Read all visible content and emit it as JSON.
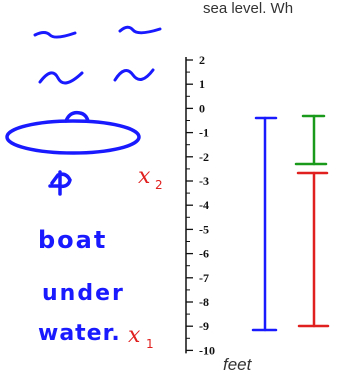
{
  "header_text": "sea level. Wh",
  "handwriting": {
    "word1": "boat",
    "word2": "under",
    "word3": "water.",
    "x2_label": "x",
    "x2_sub": "2",
    "x1_label": "x",
    "x1_sub": "1"
  },
  "number_line": {
    "ticks": [
      "2",
      "1",
      "0",
      "-1",
      "-2",
      "-3",
      "-4",
      "-5",
      "-6",
      "-7",
      "-8",
      "-9",
      "-10"
    ],
    "unit": "feet"
  },
  "colors": {
    "handwriting": "#1a1aff",
    "red": "#e0201e",
    "green": "#1a9a1a",
    "blue": "#1a1aff"
  }
}
